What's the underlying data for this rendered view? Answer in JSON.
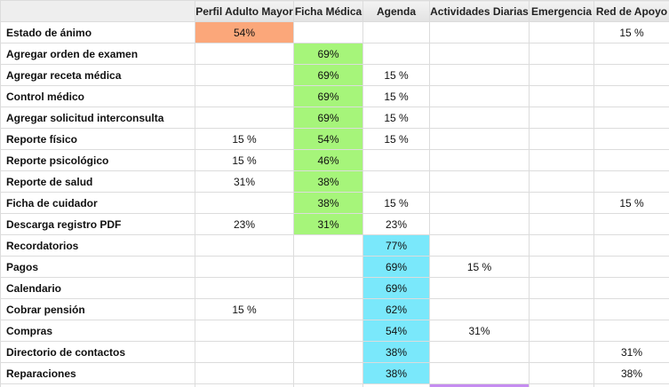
{
  "colors": {
    "orange": "#fba77a",
    "green": "#a6f57a",
    "cyan": "#7ae8fb",
    "purple": "#c58cf0"
  },
  "columns": [
    "Perfil Adulto Mayor",
    "Ficha Médica",
    "Agenda",
    "Actividades Diarias",
    "Emergencia",
    "Red de Apoyo"
  ],
  "rows": [
    {
      "label": "Estado de ánimo",
      "cells": [
        "54%",
        "",
        "",
        "",
        "",
        "15 %"
      ],
      "highlight": {
        "col": 0,
        "color": "orange"
      }
    },
    {
      "label": "Agregar orden de examen",
      "cells": [
        "",
        "69%",
        "",
        "",
        "",
        ""
      ],
      "highlight": {
        "col": 1,
        "color": "green"
      }
    },
    {
      "label": "Agregar receta médica",
      "cells": [
        "",
        "69%",
        "15 %",
        "",
        "",
        ""
      ],
      "highlight": {
        "col": 1,
        "color": "green"
      }
    },
    {
      "label": "Control médico",
      "cells": [
        "",
        "69%",
        "15 %",
        "",
        "",
        ""
      ],
      "highlight": {
        "col": 1,
        "color": "green"
      }
    },
    {
      "label": "Agregar solicitud interconsulta",
      "cells": [
        "",
        "69%",
        "15 %",
        "",
        "",
        ""
      ],
      "highlight": {
        "col": 1,
        "color": "green"
      }
    },
    {
      "label": "Reporte físico",
      "cells": [
        "15 %",
        "54%",
        "15 %",
        "",
        "",
        ""
      ],
      "highlight": {
        "col": 1,
        "color": "green"
      }
    },
    {
      "label": "Reporte psicológico",
      "cells": [
        "15 %",
        "46%",
        "",
        "",
        "",
        ""
      ],
      "highlight": {
        "col": 1,
        "color": "green"
      }
    },
    {
      "label": "Reporte de salud",
      "cells": [
        "31%",
        "38%",
        "",
        "",
        "",
        ""
      ],
      "highlight": {
        "col": 1,
        "color": "green"
      }
    },
    {
      "label": "Ficha de cuidador",
      "cells": [
        "",
        "38%",
        "15 %",
        "",
        "",
        "15 %"
      ],
      "highlight": {
        "col": 1,
        "color": "green"
      }
    },
    {
      "label": "Descarga registro PDF",
      "cells": [
        "23%",
        "31%",
        "23%",
        "",
        "",
        ""
      ],
      "highlight": {
        "col": 1,
        "color": "green"
      }
    },
    {
      "label": "Recordatorios",
      "cells": [
        "",
        "",
        "77%",
        "",
        "",
        ""
      ],
      "highlight": {
        "col": 2,
        "color": "cyan"
      }
    },
    {
      "label": "Pagos",
      "cells": [
        "",
        "",
        "69%",
        "15 %",
        "",
        ""
      ],
      "highlight": {
        "col": 2,
        "color": "cyan"
      }
    },
    {
      "label": "Calendario",
      "cells": [
        "",
        "",
        "69%",
        "",
        "",
        ""
      ],
      "highlight": {
        "col": 2,
        "color": "cyan"
      }
    },
    {
      "label": "Cobrar pensión",
      "cells": [
        "15 %",
        "",
        "62%",
        "",
        "",
        ""
      ],
      "highlight": {
        "col": 2,
        "color": "cyan"
      }
    },
    {
      "label": "Compras",
      "cells": [
        "",
        "",
        "54%",
        "31%",
        "",
        ""
      ],
      "highlight": {
        "col": 2,
        "color": "cyan"
      }
    },
    {
      "label": "Directorio de contactos",
      "cells": [
        "",
        "",
        "38%",
        "",
        "",
        "31%"
      ],
      "highlight": {
        "col": 2,
        "color": "cyan"
      }
    },
    {
      "label": "Reparaciones",
      "cells": [
        "",
        "",
        "38%",
        "",
        "",
        "38%"
      ],
      "highlight": {
        "col": 2,
        "color": "cyan"
      }
    }
  ],
  "partial_row": {
    "highlight": {
      "col": 3,
      "color": "purple"
    }
  }
}
